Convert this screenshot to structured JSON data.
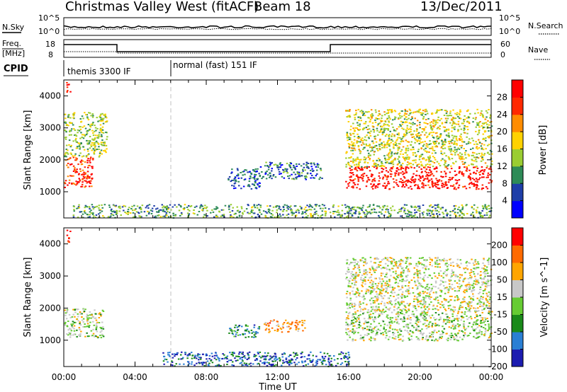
{
  "header": {
    "station": "Christmas Valley West (fitACF)",
    "beam": "Beam 18",
    "date": "13/Dec/2011"
  },
  "strip_labels": {
    "nsky": "N.Sky",
    "nsearch": "N.Search",
    "freq_line1": "Freq.",
    "freq_line2": "[MHz]",
    "nave": "Nave",
    "cpid": "CPID",
    "nsky_ticks": [
      "10^5",
      "10^0"
    ],
    "nsearch_ticks": [
      "10^5",
      "10^0"
    ],
    "freq_ticks": [
      "18",
      "8"
    ],
    "nave_ticks": [
      "60",
      "0"
    ]
  },
  "cpid_segments": [
    {
      "label": "themis 3300 IF",
      "start_h": 0,
      "end_h": 6
    },
    {
      "label": "normal (fast) 151 IF",
      "start_h": 6,
      "end_h": 24
    }
  ],
  "chart_data": [
    {
      "type": "heatmap",
      "title": "Power",
      "xlabel": "Time UT",
      "ylabel": "Slant Range [km]",
      "xlim": [
        0,
        24
      ],
      "ylim": [
        180,
        4500
      ],
      "x_ticks": [
        "00:00",
        "04:00",
        "08:00",
        "12:00",
        "16:00",
        "20:00",
        "00:00"
      ],
      "y_ticks": [
        "1000",
        "2000",
        "3000",
        "4000"
      ],
      "colorbar": {
        "label": "Power [dB]",
        "ticks": [
          "4",
          "8",
          "12",
          "16",
          "20",
          "24",
          "28"
        ],
        "range": [
          0,
          32
        ],
        "colors": [
          "#0000ff",
          "#1f3ea8",
          "#2e8b57",
          "#9acd32",
          "#ffd200",
          "#ff8c00",
          "#ff2800",
          "#ff0000"
        ]
      },
      "regions": [
        {
          "t0": 0.0,
          "t1": 1.6,
          "r0": 1150,
          "r1": 2100,
          "level": 0.85
        },
        {
          "t0": 0.0,
          "t1": 2.4,
          "r0": 2100,
          "r1": 3500,
          "level": 0.45
        },
        {
          "t0": 0.1,
          "t1": 0.35,
          "r0": 4050,
          "r1": 4450,
          "level": 0.9
        },
        {
          "t0": 9.2,
          "t1": 11.0,
          "r0": 1100,
          "r1": 1750,
          "level": 0.2
        },
        {
          "t0": 11.0,
          "t1": 14.5,
          "r0": 1400,
          "r1": 1950,
          "level": 0.25
        },
        {
          "t0": 15.8,
          "t1": 24.0,
          "r0": 1100,
          "r1": 1800,
          "level": 0.92
        },
        {
          "t0": 15.8,
          "t1": 24.0,
          "r0": 1800,
          "r1": 3600,
          "level": 0.5
        },
        {
          "t0": 0.5,
          "t1": 24.0,
          "r0": 200,
          "r1": 620,
          "level": 0.35
        }
      ]
    },
    {
      "type": "heatmap",
      "title": "Velocity",
      "xlabel": "Time UT",
      "ylabel": "Slant Range [km]",
      "xlim": [
        0,
        24
      ],
      "ylim": [
        180,
        4500
      ],
      "x_ticks": [
        "00:00",
        "04:00",
        "08:00",
        "12:00",
        "16:00",
        "20:00",
        "00:00"
      ],
      "y_ticks": [
        "1000",
        "2000",
        "3000",
        "4000"
      ],
      "colorbar": {
        "label": "Velocity [m s^-1]",
        "ticks": [
          "200",
          "100",
          "50",
          "15",
          "-15",
          "-50",
          "-100",
          "-200"
        ],
        "range": [
          -250,
          250
        ],
        "colors": [
          "#1c1cb0",
          "#2a7fd4",
          "#1a8a1a",
          "#66cc33",
          "#c8c8c8",
          "#ffa500",
          "#ff6a00",
          "#ff0000"
        ]
      },
      "regions": [
        {
          "t0": 0.0,
          "t1": 2.2,
          "r0": 1100,
          "r1": 2000,
          "level": 0.5
        },
        {
          "t0": 0.1,
          "t1": 0.35,
          "r0": 4050,
          "r1": 4450,
          "level": 0.95
        },
        {
          "t0": 9.2,
          "t1": 11.0,
          "r0": 1100,
          "r1": 1500,
          "level": 0.25
        },
        {
          "t0": 11.2,
          "t1": 13.5,
          "r0": 1250,
          "r1": 1650,
          "level": 0.72
        },
        {
          "t0": 15.8,
          "t1": 24.0,
          "r0": 1000,
          "r1": 1900,
          "level": 0.5
        },
        {
          "t0": 15.8,
          "t1": 24.0,
          "r0": 1900,
          "r1": 3600,
          "level": 0.55
        },
        {
          "t0": 5.5,
          "t1": 16.0,
          "r0": 200,
          "r1": 650,
          "level": 0.18
        }
      ]
    }
  ]
}
